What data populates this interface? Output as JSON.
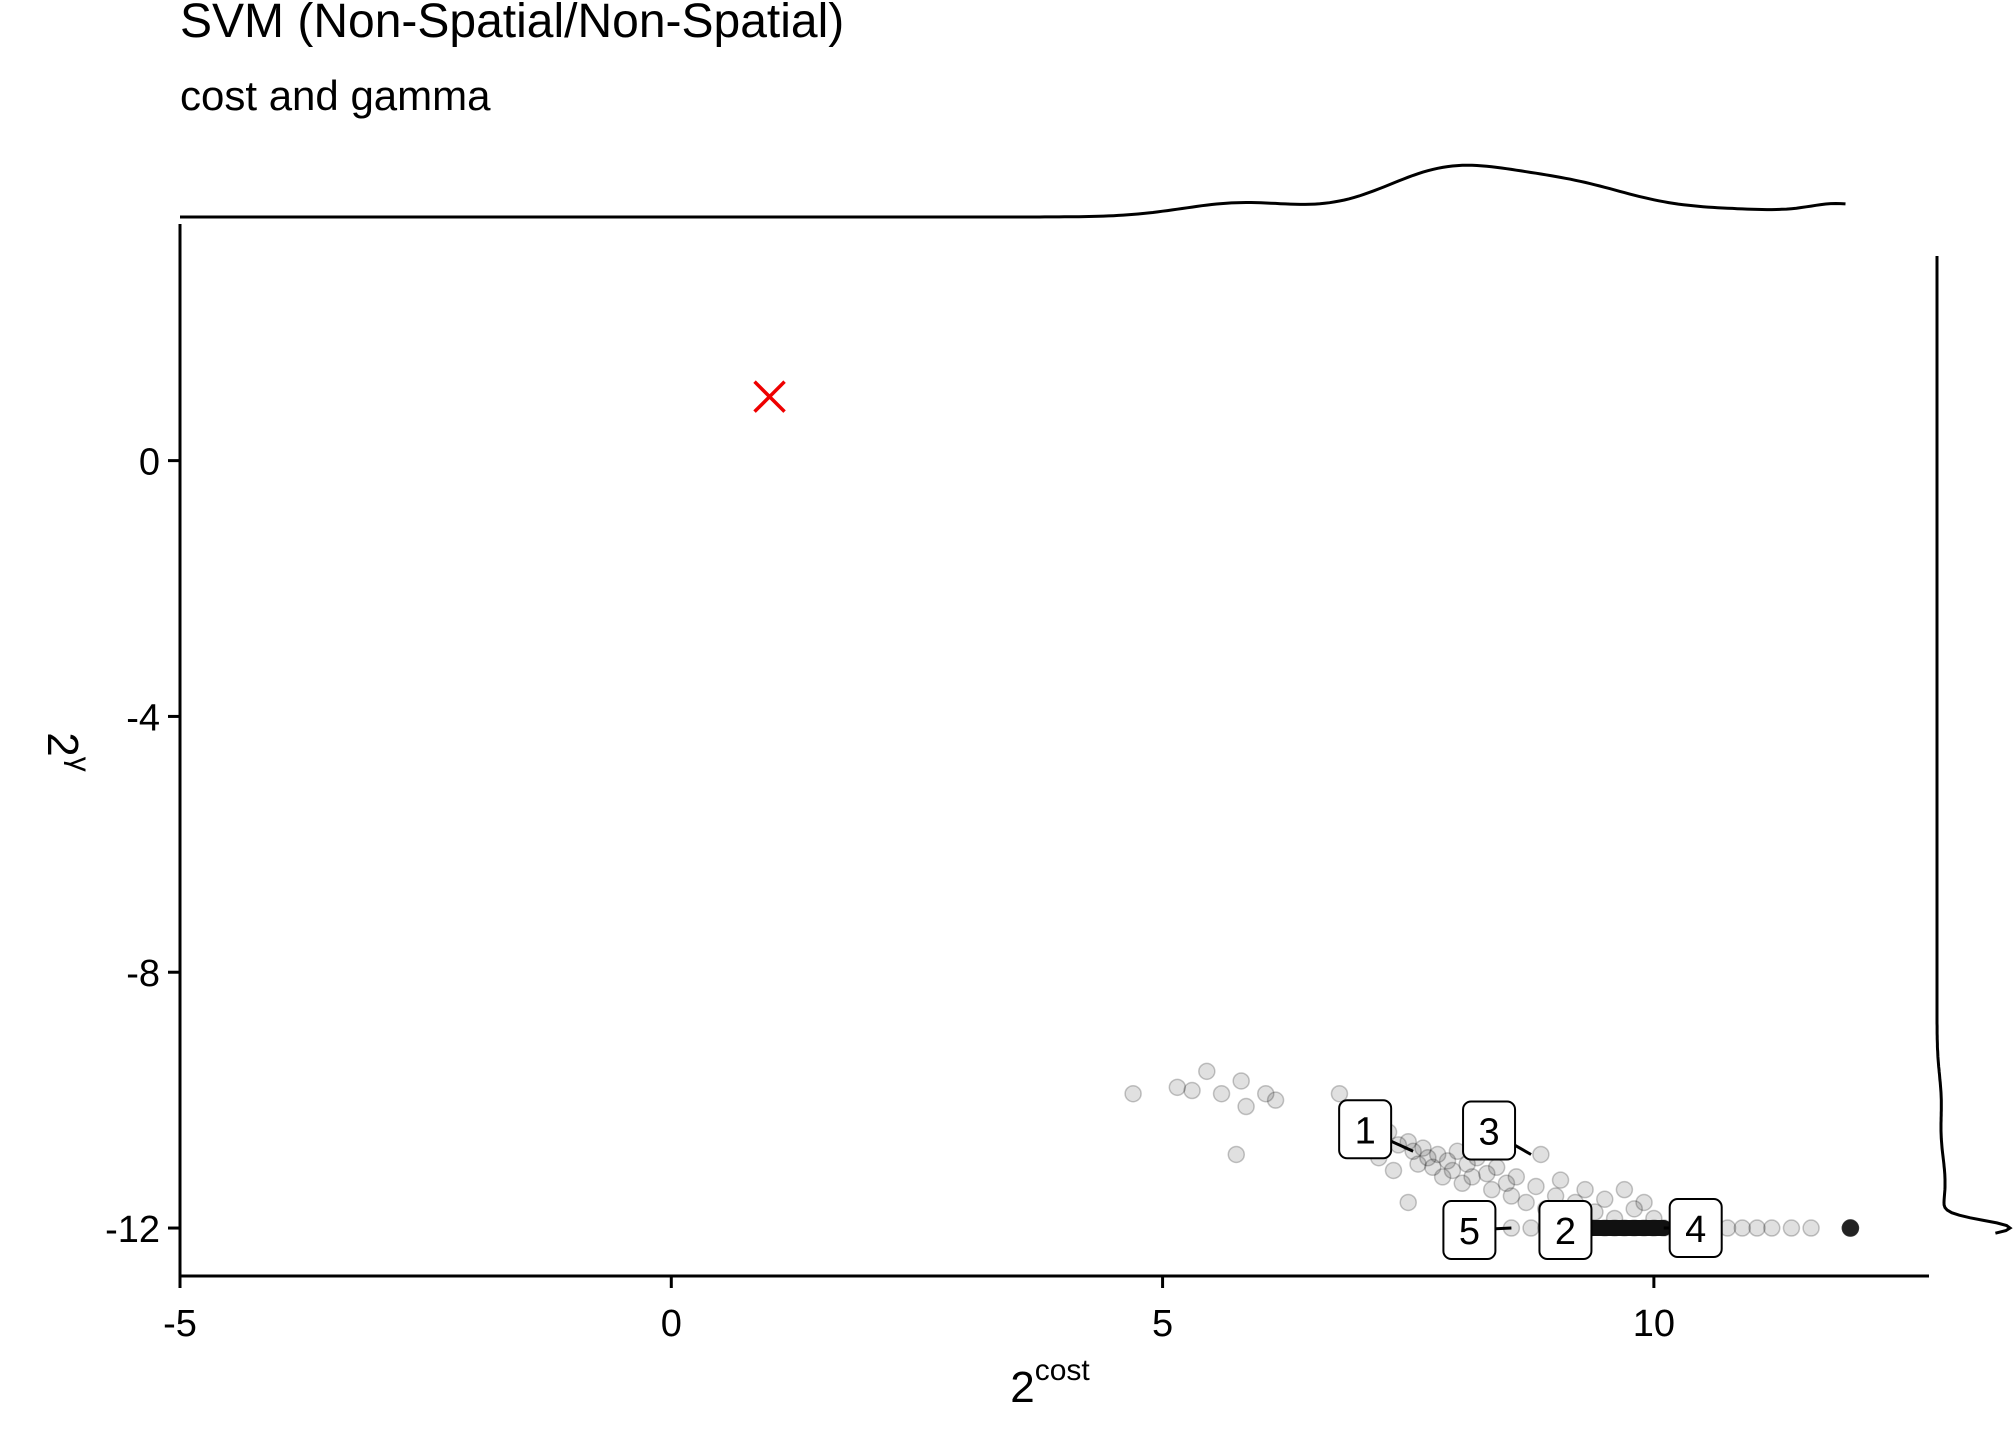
{
  "chart_data": {
    "type": "scatter",
    "title": "SVM (Non-Spatial/Non-Spatial)",
    "subtitle": "cost and gamma",
    "xlabel": {
      "base": "2",
      "superscript": "cost"
    },
    "ylabel": {
      "base": "2",
      "superscript": "γ"
    },
    "xlim": [
      -5,
      12.8
    ],
    "ylim": [
      -12.75,
      3.7
    ],
    "x_ticks": [
      -5,
      0,
      5,
      10
    ],
    "y_ticks": [
      0,
      -4,
      -8,
      -12
    ],
    "grid": false,
    "marginal_density": {
      "top": "cost",
      "right": "gamma"
    },
    "best_point": {
      "x": 1,
      "y": 1,
      "marker": "x",
      "color": "#ee0000"
    },
    "points": [
      [
        4.7,
        -9.9
      ],
      [
        5.15,
        -9.8
      ],
      [
        5.3,
        -9.85
      ],
      [
        5.45,
        -9.55
      ],
      [
        5.6,
        -9.9
      ],
      [
        5.8,
        -9.7
      ],
      [
        5.85,
        -10.1
      ],
      [
        6.05,
        -9.9
      ],
      [
        6.15,
        -10.0
      ],
      [
        5.75,
        -10.85
      ],
      [
        6.8,
        -9.9
      ],
      [
        7.1,
        -10.6
      ],
      [
        7.2,
        -10.9
      ],
      [
        7.3,
        -10.5
      ],
      [
        7.35,
        -11.1
      ],
      [
        7.4,
        -10.7
      ],
      [
        7.5,
        -10.65
      ],
      [
        7.55,
        -10.8
      ],
      [
        7.6,
        -11.0
      ],
      [
        7.65,
        -10.75
      ],
      [
        7.7,
        -10.9
      ],
      [
        7.75,
        -11.05
      ],
      [
        7.8,
        -10.85
      ],
      [
        7.85,
        -11.2
      ],
      [
        7.9,
        -10.95
      ],
      [
        7.95,
        -11.1
      ],
      [
        8.0,
        -10.8
      ],
      [
        8.05,
        -11.3
      ],
      [
        8.1,
        -11.0
      ],
      [
        8.15,
        -11.2
      ],
      [
        8.2,
        -10.9
      ],
      [
        8.3,
        -11.15
      ],
      [
        8.35,
        -11.4
      ],
      [
        8.4,
        -11.05
      ],
      [
        8.5,
        -11.3
      ],
      [
        8.55,
        -11.5
      ],
      [
        8.6,
        -11.2
      ],
      [
        8.7,
        -11.6
      ],
      [
        8.8,
        -11.35
      ],
      [
        8.85,
        -10.85
      ],
      [
        8.9,
        -11.7
      ],
      [
        9.0,
        -11.5
      ],
      [
        9.05,
        -11.25
      ],
      [
        9.1,
        -11.8
      ],
      [
        9.2,
        -11.6
      ],
      [
        9.3,
        -11.4
      ],
      [
        9.4,
        -11.75
      ],
      [
        9.5,
        -11.55
      ],
      [
        9.6,
        -11.85
      ],
      [
        9.7,
        -11.4
      ],
      [
        9.8,
        -11.7
      ],
      [
        9.9,
        -11.6
      ],
      [
        10.0,
        -11.85
      ],
      [
        7.5,
        -11.6
      ],
      [
        8.1,
        -11.7
      ],
      [
        8.3,
        -11.9
      ],
      [
        8.55,
        -12.0
      ],
      [
        8.75,
        -12.0
      ],
      [
        8.9,
        -12.0
      ],
      [
        9.05,
        -12.0
      ],
      [
        9.2,
        -12.0
      ],
      [
        9.35,
        -12.0
      ],
      [
        9.5,
        -12.0
      ],
      [
        9.6,
        -12.0
      ],
      [
        9.7,
        -12.0
      ],
      [
        9.8,
        -12.0
      ],
      [
        9.9,
        -12.0
      ],
      [
        10.0,
        -12.0
      ],
      [
        10.1,
        -12.0
      ],
      [
        10.2,
        -12.0
      ],
      [
        10.3,
        -12.0
      ],
      [
        10.45,
        -12.0
      ],
      [
        10.6,
        -12.0
      ],
      [
        10.75,
        -12.0
      ],
      [
        10.9,
        -12.0
      ],
      [
        11.05,
        -12.0
      ],
      [
        11.2,
        -12.0
      ],
      [
        11.4,
        -12.0
      ],
      [
        11.6,
        -12.0
      ],
      [
        12.0,
        -12.0
      ],
      [
        12.0,
        -12.0
      ],
      [
        12.0,
        -12.0
      ],
      [
        12.0,
        -12.0
      ],
      [
        12.0,
        -12.0
      ],
      [
        12.0,
        -12.0
      ]
    ],
    "dense_segment": {
      "x": [
        9.0,
        10.1
      ],
      "y": -12.0
    },
    "annotations": [
      {
        "label": "1",
        "x": 7.55,
        "y": -10.8
      },
      {
        "label": "3",
        "x": 8.75,
        "y": -10.85
      },
      {
        "label": "5",
        "x": 8.55,
        "y": -12.0
      },
      {
        "label": "2",
        "x": 9.1,
        "y": -12.0
      },
      {
        "label": "4",
        "x": 10.1,
        "y": -12.0
      }
    ]
  }
}
